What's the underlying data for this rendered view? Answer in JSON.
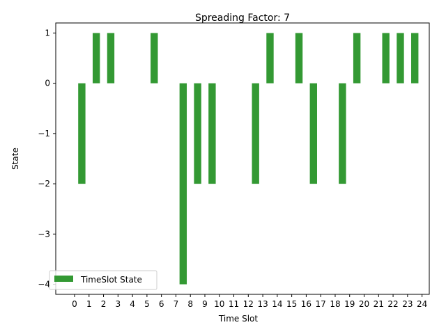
{
  "chart_data": {
    "type": "bar",
    "title": "Spreading Factor: 7",
    "xlabel": "Time Slot",
    "ylabel": "State",
    "x_ticks": [
      "0",
      "1",
      "2",
      "3",
      "4",
      "5",
      "6",
      "7",
      "8",
      "9",
      "10",
      "11",
      "12",
      "13",
      "14",
      "15",
      "16",
      "17",
      "18",
      "19",
      "20",
      "21",
      "22",
      "23",
      "24"
    ],
    "y_ticks": [
      "1",
      "0",
      "−1",
      "−2",
      "−3",
      "−4"
    ],
    "ylim": [
      -4.2,
      1.2
    ],
    "xlim": [
      -1.3,
      24.5
    ],
    "grid": false,
    "legend_position": "lower-left",
    "series": [
      {
        "name": "TimeSlot State",
        "color": "#339933",
        "x": [
          0.5,
          1.5,
          2.5,
          5.5,
          7.5,
          8.5,
          9.5,
          12.5,
          13.5,
          15.5,
          16.5,
          18.5,
          19.5,
          21.5,
          22.5,
          23.5
        ],
        "values": [
          -2,
          1,
          1,
          1,
          -4,
          -2,
          -2,
          -2,
          1,
          1,
          -2,
          -2,
          1,
          1,
          1,
          1
        ]
      }
    ]
  }
}
